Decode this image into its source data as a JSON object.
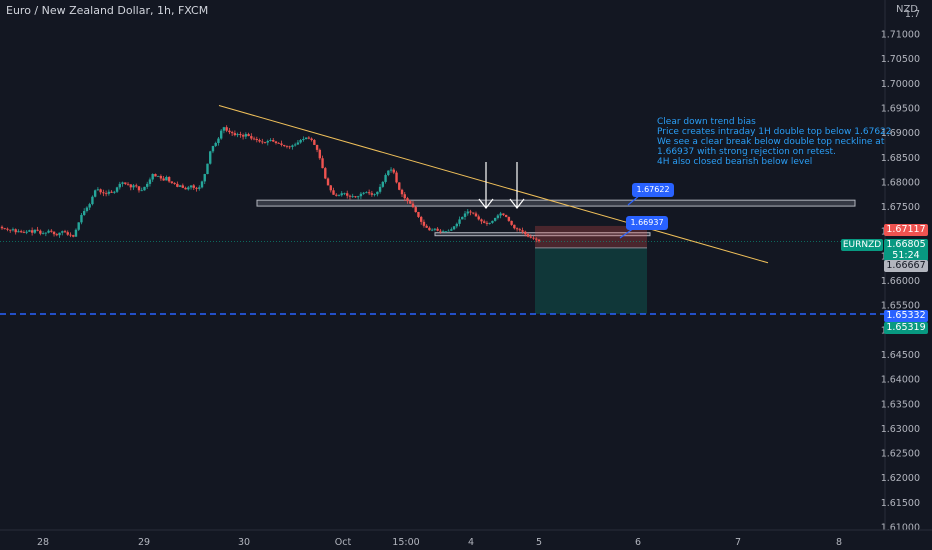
{
  "chart": {
    "title": "Euro / New Zealand Dollar, 1h, FXCM",
    "currency": "NZD",
    "symbol": "EURNZD"
  },
  "annotation": {
    "lines": [
      "Clear down trend bias",
      "Price creates intraday 1H double top below 1.67622",
      "We see a clear break below double top neckline at",
      "1.66937 with strong rejection on retest.",
      "4H also closed bearish below level"
    ]
  },
  "callouts": {
    "upper": "1.67622",
    "lower": "1.66937"
  },
  "price_tags": {
    "red": "1.67117",
    "green_price": "1.66805",
    "green_timer": "51:24",
    "gray": "1.66667",
    "blue": "1.65332",
    "teal": "1.65319"
  },
  "colors": {
    "background": "#131722",
    "up": "#26a69a",
    "down": "#ef5350",
    "trendline": "#f0c05a",
    "target_line": "#2962ff",
    "zone": "#b2b5be"
  },
  "chart_data": {
    "type": "candlestick",
    "title": "Euro / New Zealand Dollar, 1h, FXCM",
    "x_ticks": [
      "28",
      "29",
      "30",
      "Oct",
      "15:00",
      "4",
      "5",
      "6",
      "7",
      "8"
    ],
    "y_ticks": [
      "1.71000",
      "1.70500",
      "1.70000",
      "1.69500",
      "1.69000",
      "1.68500",
      "1.68000",
      "1.67500",
      "1.67000",
      "1.66500",
      "1.66000",
      "1.65500",
      "1.65000",
      "1.64500",
      "1.64000",
      "1.63500",
      "1.63000",
      "1.62500",
      "1.62000",
      "1.61500",
      "1.61000"
    ],
    "y_top_tick": "1.7",
    "ylim": [
      1.6095,
      1.717
    ],
    "grid": false,
    "close_path": [
      1.6707,
      1.6706,
      1.6704,
      1.6703,
      1.6705,
      1.6699,
      1.6701,
      1.6699,
      1.6698,
      1.67,
      1.6703,
      1.6698,
      1.6704,
      1.6702,
      1.6696,
      1.6697,
      1.6698,
      1.6702,
      1.67,
      1.6695,
      1.6693,
      1.6698,
      1.6701,
      1.6699,
      1.6694,
      1.6693,
      1.669,
      1.6704,
      1.6719,
      1.6734,
      1.6742,
      1.6749,
      1.6756,
      1.6771,
      1.6784,
      1.6786,
      1.678,
      1.6778,
      1.6777,
      1.6781,
      1.6779,
      1.6781,
      1.679,
      1.6797,
      1.68,
      1.6797,
      1.6796,
      1.679,
      1.6794,
      1.6792,
      1.6784,
      1.6784,
      1.6791,
      1.6797,
      1.6806,
      1.6817,
      1.6812,
      1.6813,
      1.6808,
      1.6804,
      1.6811,
      1.6802,
      1.6799,
      1.6797,
      1.6791,
      1.6794,
      1.6789,
      1.6786,
      1.679,
      1.6794,
      1.6789,
      1.6787,
      1.679,
      1.6802,
      1.6817,
      1.6838,
      1.6863,
      1.6874,
      1.688,
      1.6889,
      1.6905,
      1.6912,
      1.6905,
      1.6902,
      1.69,
      1.6896,
      1.6898,
      1.6896,
      1.6893,
      1.6898,
      1.6894,
      1.6889,
      1.6888,
      1.6886,
      1.6883,
      1.6882,
      1.6881,
      1.6884,
      1.6886,
      1.6883,
      1.688,
      1.6879,
      1.6876,
      1.6874,
      1.6873,
      1.6872,
      1.6875,
      1.6877,
      1.6881,
      1.6886,
      1.6888,
      1.6891,
      1.6889,
      1.6886,
      1.6876,
      1.6866,
      1.6849,
      1.6829,
      1.6808,
      1.6794,
      1.6784,
      1.6775,
      1.6773,
      1.6774,
      1.6778,
      1.6778,
      1.6773,
      1.6771,
      1.6772,
      1.677,
      1.6772,
      1.6777,
      1.6779,
      1.678,
      1.6778,
      1.6775,
      1.6776,
      1.6781,
      1.6791,
      1.6801,
      1.6815,
      1.6824,
      1.6826,
      1.682,
      1.68,
      1.6785,
      1.6776,
      1.6768,
      1.6762,
      1.6757,
      1.675,
      1.674,
      1.673,
      1.672,
      1.6712,
      1.6708,
      1.6703,
      1.6704,
      1.6706,
      1.6702,
      1.67,
      1.6701,
      1.6701,
      1.6702,
      1.6705,
      1.6711,
      1.6716,
      1.6725,
      1.673,
      1.6737,
      1.6741,
      1.6739,
      1.6737,
      1.6731,
      1.6725,
      1.6721,
      1.6718,
      1.6716,
      1.6718,
      1.6722,
      1.6728,
      1.6733,
      1.6737,
      1.6734,
      1.673,
      1.6722,
      1.6714,
      1.6707,
      1.6705,
      1.6703,
      1.67,
      1.6695,
      1.669,
      1.6688,
      1.6686,
      1.6684,
      1.6681
    ],
    "x_range": [
      "Sep 27",
      "Oct 5"
    ],
    "levels": {
      "resistance_zone": [
        1.6752,
        1.6764
      ],
      "neckline_zone": [
        1.6693,
        1.6698
      ],
      "entry": 1.66937,
      "stop": 1.67117,
      "current": 1.66805,
      "target": 1.65332,
      "red_tag": 1.67117,
      "gray_tag": 1.66667,
      "teal_tag": 1.65319
    },
    "trendline": [
      [
        1.6956,
        0.221
      ],
      [
        1.6637,
        0.822
      ]
    ],
    "arrow_marks": 2
  }
}
